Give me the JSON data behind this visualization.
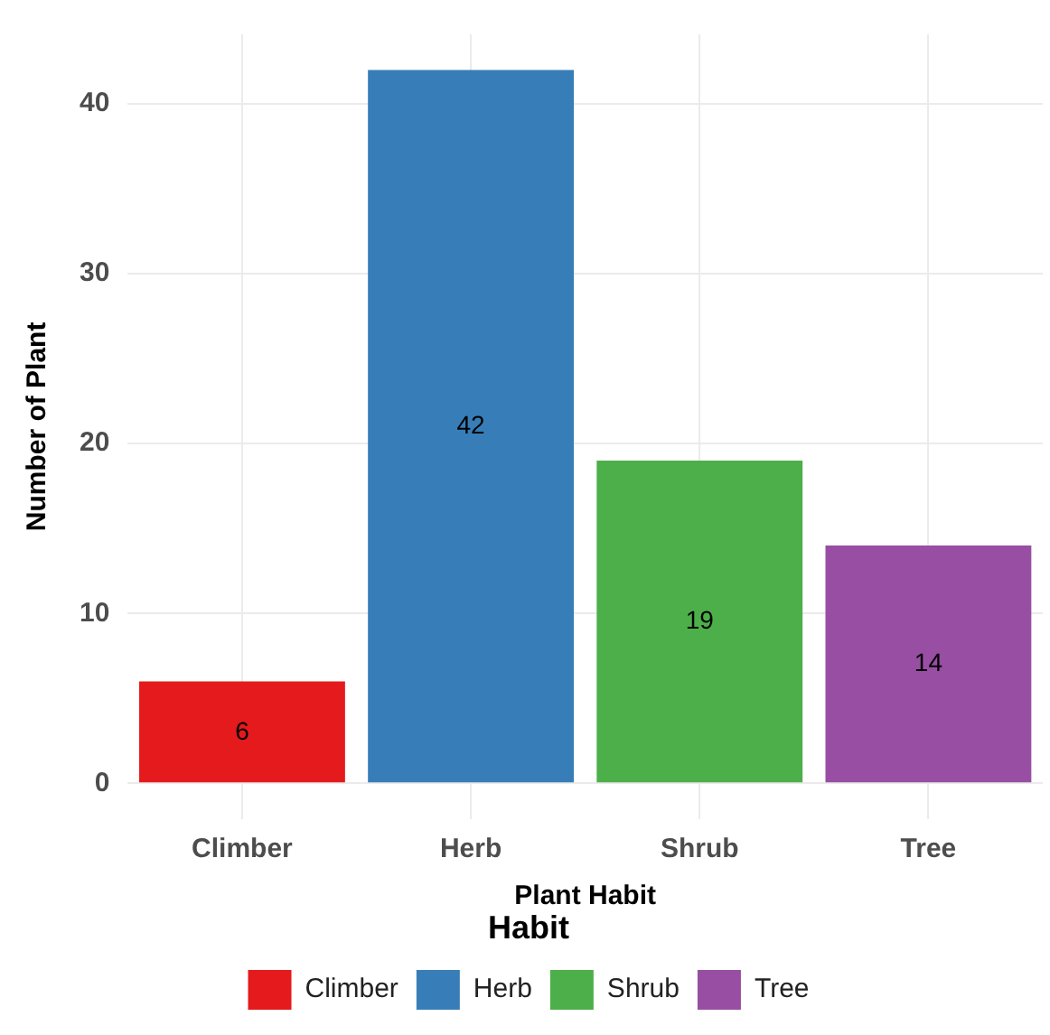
{
  "chart_data": {
    "type": "bar",
    "xlabel": "Plant Habit",
    "ylabel": "Number of Plant",
    "legend_title": "Habit",
    "categories": [
      "Climber",
      "Herb",
      "Shrub",
      "Tree"
    ],
    "series": [
      {
        "name": "Climber",
        "color": "#e41a1c",
        "values": [
          6,
          null,
          null,
          null
        ]
      },
      {
        "name": "Herb",
        "color": "#377eb8",
        "values": [
          null,
          42,
          null,
          null
        ]
      },
      {
        "name": "Shrub",
        "color": "#4daf4a",
        "values": [
          null,
          null,
          19,
          null
        ]
      },
      {
        "name": "Tree",
        "color": "#984ea3",
        "values": [
          null,
          null,
          null,
          14
        ]
      }
    ],
    "ylim": [
      -2.1,
      44.1
    ],
    "yticks": [
      0,
      10,
      20,
      30,
      40
    ],
    "grid": true,
    "legend": "bottom",
    "data_labels": true
  }
}
